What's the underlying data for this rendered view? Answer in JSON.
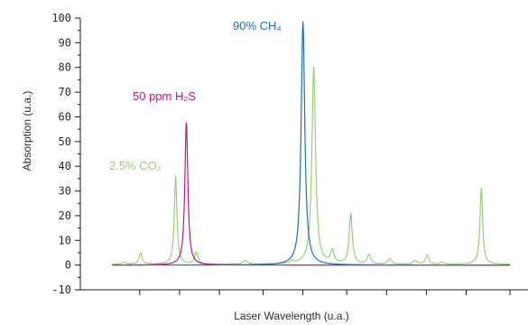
{
  "chart_data": {
    "type": "line",
    "xlabel": "Laser Wavelength (u.a.)",
    "ylabel": "Absorption (u.a.)",
    "xlim": [
      0,
      100
    ],
    "ylim": [
      -10,
      100
    ],
    "y_ticks": [
      -10,
      0,
      10,
      20,
      30,
      40,
      50,
      60,
      70,
      80,
      90,
      100
    ],
    "x_ticks": [
      7,
      17,
      27,
      38,
      48,
      59,
      69,
      79,
      89,
      100
    ],
    "grid": false,
    "colors": {
      "ch4": "#1f6fb0",
      "h2s": "#c0197f",
      "co2": "#9bce7a"
    },
    "series": [
      {
        "key": "ch4",
        "peaks": [
          {
            "x": 48,
            "y": 98.5,
            "w": 0.55
          }
        ],
        "baseline": 0
      },
      {
        "key": "h2s",
        "peaks": [
          {
            "x": 18.7,
            "y": 58,
            "w": 0.45
          }
        ],
        "baseline": 0
      },
      {
        "key": "co2",
        "peaks": [
          {
            "x": 3,
            "y": 0.8,
            "w": 0.6
          },
          {
            "x": 7.2,
            "y": 4.5,
            "w": 0.45
          },
          {
            "x": 16.0,
            "y": 35.5,
            "w": 0.4
          },
          {
            "x": 21.2,
            "y": 4.8,
            "w": 0.5
          },
          {
            "x": 33.5,
            "y": 1.5,
            "w": 0.6
          },
          {
            "x": 45.2,
            "y": 1.0,
            "w": 0.5
          },
          {
            "x": 50.7,
            "y": 80,
            "w": 0.55
          },
          {
            "x": 55.4,
            "y": 5.2,
            "w": 0.5
          },
          {
            "x": 60.0,
            "y": 20.5,
            "w": 0.45
          },
          {
            "x": 64.6,
            "y": 3.8,
            "w": 0.5
          },
          {
            "x": 69.8,
            "y": 2.2,
            "w": 0.5
          },
          {
            "x": 76.2,
            "y": 1.5,
            "w": 0.5
          },
          {
            "x": 79.2,
            "y": 3.8,
            "w": 0.45
          },
          {
            "x": 83.0,
            "y": 0.8,
            "w": 0.5
          },
          {
            "x": 92.8,
            "y": 31,
            "w": 0.4
          }
        ],
        "baseline": 0.3
      }
    ],
    "annotations": [
      {
        "key": "ch4",
        "text": "90% CH₄"
      },
      {
        "key": "h2s",
        "text": "50 ppm H₂S"
      },
      {
        "key": "co2",
        "text": "2.5% CO₂"
      }
    ]
  }
}
